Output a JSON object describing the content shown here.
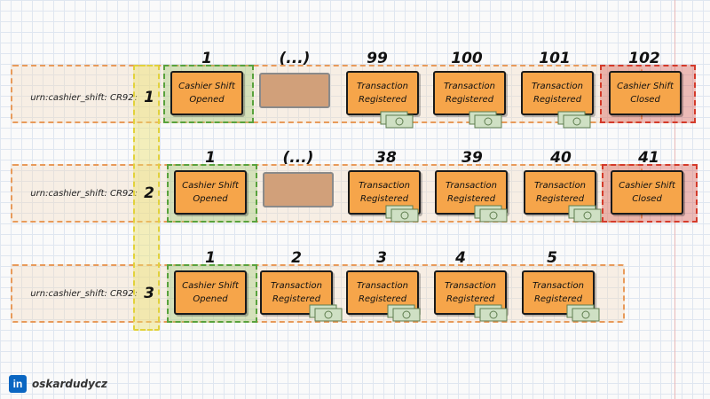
{
  "streams": [
    {
      "stream_id": "urn:cashier_shift: CR92",
      "separator": ":",
      "revision": "1",
      "events": [
        {
          "num": "1",
          "label": "Cashier Shift Opened",
          "kind": "opened"
        },
        {
          "num": "(...)",
          "label": "",
          "kind": "placeholder"
        },
        {
          "num": "99",
          "label": "Transaction Registered",
          "kind": "transaction"
        },
        {
          "num": "100",
          "label": "Transaction Registered",
          "kind": "transaction"
        },
        {
          "num": "101",
          "label": "Transaction Registered",
          "kind": "transaction"
        },
        {
          "num": "102",
          "label": "Cashier Shift Closed",
          "kind": "closed"
        }
      ]
    },
    {
      "stream_id": "urn:cashier_shift: CR92",
      "separator": ":",
      "revision": "2",
      "events": [
        {
          "num": "1",
          "label": "Cashier Shift Opened",
          "kind": "opened"
        },
        {
          "num": "(...)",
          "label": "",
          "kind": "placeholder"
        },
        {
          "num": "38",
          "label": "Transaction Registered",
          "kind": "transaction"
        },
        {
          "num": "39",
          "label": "Transaction Registered",
          "kind": "transaction"
        },
        {
          "num": "40",
          "label": "Transaction Registered",
          "kind": "transaction"
        },
        {
          "num": "41",
          "label": "Cashier Shift Closed",
          "kind": "closed"
        }
      ]
    },
    {
      "stream_id": "urn:cashier_shift: CR92",
      "separator": ":",
      "revision": "3",
      "events": [
        {
          "num": "1",
          "label": "Cashier Shift Opened",
          "kind": "opened"
        },
        {
          "num": "2",
          "label": "Transaction Registered",
          "kind": "transaction"
        },
        {
          "num": "3",
          "label": "Transaction Registered",
          "kind": "transaction"
        },
        {
          "num": "4",
          "label": "Transaction Registered",
          "kind": "transaction"
        },
        {
          "num": "5",
          "label": "Transaction Registered",
          "kind": "transaction"
        }
      ]
    }
  ],
  "footer": {
    "brand_icon": "in",
    "author": "oskardudycz"
  },
  "colors": {
    "event_fill": "#f6a54a",
    "opened_frame": "#58a23c",
    "closed_frame": "#d43a2a",
    "stream_border": "#e89a5a",
    "revision_highlight": "#e2d23a"
  }
}
